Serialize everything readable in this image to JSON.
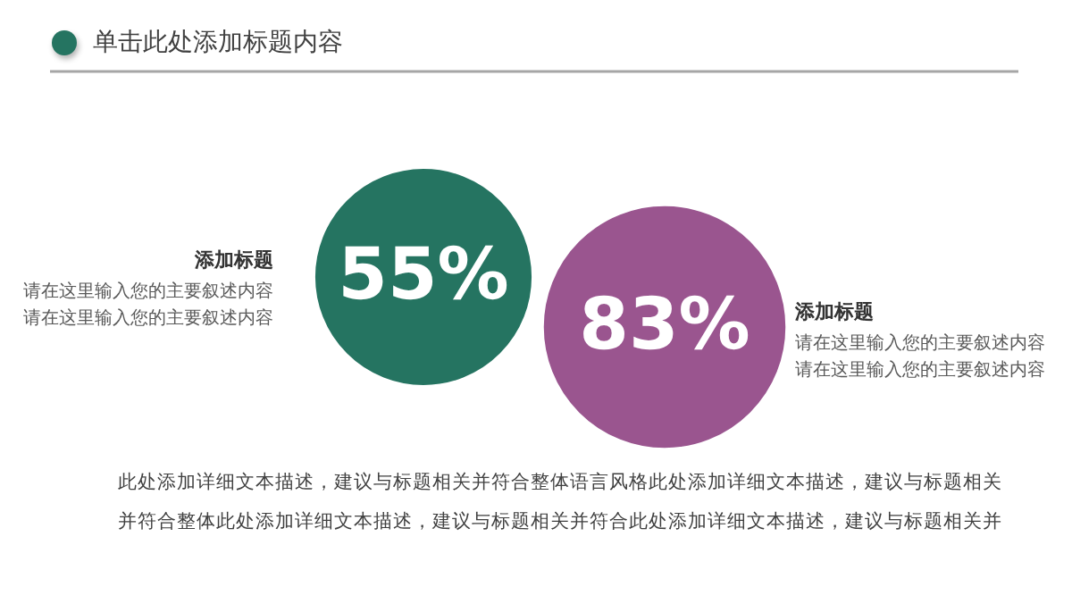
{
  "chart_data": {
    "type": "other",
    "title": "单击此处添加标题内容",
    "categories": [
      "添加标题",
      "添加标题"
    ],
    "values": [
      55,
      83
    ],
    "value_labels": [
      "55%",
      "83%"
    ],
    "colors": [
      "#257461",
      "#9a558f"
    ],
    "annotations": [
      "请在这里输入您的主要叙述内容",
      "请在这里输入您的主要叙述内容",
      "请在这里输入您的主要叙述内容",
      "请在这里输入您的主要叙述内容",
      "此处添加详细文本描述，建议与标题相关并符合整体语言风格此处添加详细文本描述，建议与标题相关",
      "并符合整体此处添加详细文本描述，建议与标题相关并符合此处添加详细文本描述，建议与标题相关并"
    ]
  }
}
